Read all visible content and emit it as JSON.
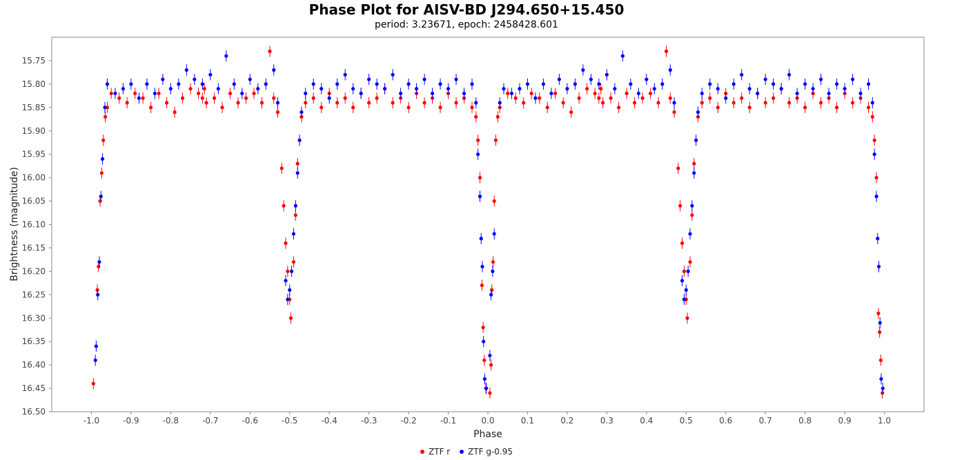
{
  "chart_data": {
    "type": "scatter",
    "title": "Phase Plot for AISV-BD J294.650+15.450",
    "subtitle": "period: 3.23671, epoch: 2458428.601",
    "xlabel": "Phase",
    "ylabel": "Brightness (magnitude)",
    "xlim": [
      -1.1,
      1.1
    ],
    "ylim": [
      15.7,
      16.5
    ],
    "y_inverted": true,
    "x_ticks": [
      "-1.0",
      "-0.9",
      "-0.8",
      "-0.7",
      "-0.6",
      "-0.5",
      "-0.4",
      "-0.3",
      "-0.2",
      "-0.1",
      "0.0",
      "0.1",
      "0.2",
      "0.3",
      "0.4",
      "0.5",
      "0.6",
      "0.7",
      "0.8",
      "0.9",
      "1.0"
    ],
    "y_ticks": [
      "15.75",
      "15.80",
      "15.85",
      "15.90",
      "15.95",
      "16.00",
      "16.05",
      "16.10",
      "16.15",
      "16.20",
      "16.25",
      "16.30",
      "16.35",
      "16.40",
      "16.45",
      "16.50"
    ],
    "grid": false,
    "legend_position": "bottom-center",
    "error_bars": true,
    "series": [
      {
        "name": "ZTF r",
        "color": "#ff0000",
        "description": "eclipsing binary light curve; baseline ~15.83 mag with scatter ±0.03; primary eclipse at phase 0.0 (depth to ~16.46), secondary eclipse at phase 0.5 (depth to ~16.30); shown repeated over phase -1.0 to 1.0",
        "points": [
          [
            -0.995,
            16.44
          ],
          [
            -0.985,
            16.24
          ],
          [
            -0.982,
            16.19
          ],
          [
            -0.978,
            16.05
          ],
          [
            -0.974,
            15.99
          ],
          [
            -0.97,
            15.92
          ],
          [
            -0.965,
            15.87
          ],
          [
            -0.96,
            15.85
          ],
          [
            -0.95,
            15.82
          ],
          [
            -0.93,
            15.83
          ],
          [
            -0.91,
            15.84
          ],
          [
            -0.89,
            15.82
          ],
          [
            -0.87,
            15.83
          ],
          [
            -0.85,
            15.85
          ],
          [
            -0.83,
            15.82
          ],
          [
            -0.81,
            15.84
          ],
          [
            -0.79,
            15.86
          ],
          [
            -0.77,
            15.83
          ],
          [
            -0.75,
            15.81
          ],
          [
            -0.73,
            15.82
          ],
          [
            -0.72,
            15.83
          ],
          [
            -0.715,
            15.81
          ],
          [
            -0.71,
            15.84
          ],
          [
            -0.69,
            15.83
          ],
          [
            -0.67,
            15.85
          ],
          [
            -0.65,
            15.82
          ],
          [
            -0.63,
            15.84
          ],
          [
            -0.61,
            15.83
          ],
          [
            -0.59,
            15.82
          ],
          [
            -0.57,
            15.84
          ],
          [
            -0.55,
            15.73
          ],
          [
            -0.54,
            15.83
          ],
          [
            -0.53,
            15.86
          ],
          [
            -0.52,
            15.98
          ],
          [
            -0.515,
            16.06
          ],
          [
            -0.51,
            16.14
          ],
          [
            -0.505,
            16.2
          ],
          [
            -0.5,
            16.26
          ],
          [
            -0.497,
            16.3
          ],
          [
            -0.49,
            16.18
          ],
          [
            -0.485,
            16.08
          ],
          [
            -0.48,
            15.97
          ],
          [
            -0.47,
            15.87
          ],
          [
            -0.46,
            15.84
          ],
          [
            -0.44,
            15.83
          ],
          [
            -0.42,
            15.85
          ],
          [
            -0.4,
            15.82
          ],
          [
            -0.38,
            15.84
          ],
          [
            -0.36,
            15.83
          ],
          [
            -0.34,
            15.85
          ],
          [
            -0.32,
            15.82
          ],
          [
            -0.3,
            15.84
          ],
          [
            -0.28,
            15.83
          ],
          [
            -0.26,
            15.81
          ],
          [
            -0.24,
            15.84
          ],
          [
            -0.22,
            15.83
          ],
          [
            -0.2,
            15.85
          ],
          [
            -0.18,
            15.82
          ],
          [
            -0.16,
            15.84
          ],
          [
            -0.14,
            15.83
          ],
          [
            -0.12,
            15.85
          ],
          [
            -0.1,
            15.82
          ],
          [
            -0.08,
            15.84
          ],
          [
            -0.06,
            15.83
          ],
          [
            -0.04,
            15.85
          ],
          [
            -0.03,
            15.87
          ],
          [
            -0.025,
            15.92
          ],
          [
            -0.02,
            16.0
          ],
          [
            -0.015,
            16.23
          ],
          [
            -0.012,
            16.32
          ],
          [
            -0.009,
            16.39
          ],
          [
            -0.005,
            16.45
          ],
          [
            0.005,
            16.46
          ],
          [
            0.008,
            16.4
          ],
          [
            0.01,
            16.24
          ],
          [
            0.013,
            16.18
          ],
          [
            0.016,
            16.05
          ],
          [
            0.02,
            15.92
          ],
          [
            0.025,
            15.87
          ],
          [
            0.03,
            15.85
          ],
          [
            0.05,
            15.82
          ],
          [
            0.07,
            15.83
          ],
          [
            0.09,
            15.84
          ],
          [
            0.11,
            15.82
          ],
          [
            0.13,
            15.83
          ],
          [
            0.15,
            15.85
          ],
          [
            0.17,
            15.82
          ],
          [
            0.19,
            15.84
          ],
          [
            0.21,
            15.86
          ],
          [
            0.23,
            15.83
          ],
          [
            0.25,
            15.81
          ],
          [
            0.27,
            15.82
          ],
          [
            0.28,
            15.83
          ],
          [
            0.285,
            15.81
          ],
          [
            0.29,
            15.84
          ],
          [
            0.31,
            15.83
          ],
          [
            0.33,
            15.85
          ],
          [
            0.35,
            15.82
          ],
          [
            0.37,
            15.84
          ],
          [
            0.39,
            15.83
          ],
          [
            0.41,
            15.82
          ],
          [
            0.43,
            15.84
          ],
          [
            0.45,
            15.73
          ],
          [
            0.46,
            15.83
          ],
          [
            0.47,
            15.86
          ],
          [
            0.48,
            15.98
          ],
          [
            0.485,
            16.06
          ],
          [
            0.49,
            16.14
          ],
          [
            0.495,
            16.2
          ],
          [
            0.5,
            16.26
          ],
          [
            0.503,
            16.3
          ],
          [
            0.51,
            16.18
          ],
          [
            0.515,
            16.08
          ],
          [
            0.52,
            15.97
          ],
          [
            0.53,
            15.87
          ],
          [
            0.54,
            15.84
          ],
          [
            0.56,
            15.83
          ],
          [
            0.58,
            15.85
          ],
          [
            0.6,
            15.82
          ],
          [
            0.62,
            15.84
          ],
          [
            0.64,
            15.83
          ],
          [
            0.66,
            15.85
          ],
          [
            0.68,
            15.82
          ],
          [
            0.7,
            15.84
          ],
          [
            0.72,
            15.83
          ],
          [
            0.74,
            15.81
          ],
          [
            0.76,
            15.84
          ],
          [
            0.78,
            15.83
          ],
          [
            0.8,
            15.85
          ],
          [
            0.82,
            15.82
          ],
          [
            0.84,
            15.84
          ],
          [
            0.86,
            15.83
          ],
          [
            0.88,
            15.85
          ],
          [
            0.9,
            15.82
          ],
          [
            0.92,
            15.84
          ],
          [
            0.94,
            15.83
          ],
          [
            0.96,
            15.85
          ],
          [
            0.97,
            15.87
          ],
          [
            0.975,
            15.92
          ],
          [
            0.98,
            16.0
          ],
          [
            0.985,
            16.29
          ],
          [
            0.988,
            16.33
          ],
          [
            0.991,
            16.39
          ],
          [
            0.995,
            16.46
          ]
        ]
      },
      {
        "name": "ZTF g-0.95",
        "color": "#0000ff",
        "description": "same light curve in g band offset by 0.95 mag; baseline ~15.82 mag; primary eclipse at phase 0.0 (to ~16.45), secondary at 0.5 (to ~16.25)",
        "points": [
          [
            -0.99,
            16.39
          ],
          [
            -0.988,
            16.36
          ],
          [
            -0.984,
            16.25
          ],
          [
            -0.98,
            16.18
          ],
          [
            -0.976,
            16.04
          ],
          [
            -0.972,
            15.96
          ],
          [
            -0.966,
            15.85
          ],
          [
            -0.96,
            15.8
          ],
          [
            -0.94,
            15.82
          ],
          [
            -0.92,
            15.81
          ],
          [
            -0.9,
            15.8
          ],
          [
            -0.88,
            15.83
          ],
          [
            -0.86,
            15.8
          ],
          [
            -0.84,
            15.82
          ],
          [
            -0.82,
            15.79
          ],
          [
            -0.8,
            15.81
          ],
          [
            -0.78,
            15.8
          ],
          [
            -0.76,
            15.77
          ],
          [
            -0.74,
            15.79
          ],
          [
            -0.72,
            15.8
          ],
          [
            -0.7,
            15.78
          ],
          [
            -0.68,
            15.81
          ],
          [
            -0.66,
            15.74
          ],
          [
            -0.64,
            15.8
          ],
          [
            -0.62,
            15.82
          ],
          [
            -0.6,
            15.79
          ],
          [
            -0.58,
            15.81
          ],
          [
            -0.56,
            15.8
          ],
          [
            -0.54,
            15.77
          ],
          [
            -0.53,
            15.84
          ],
          [
            -0.51,
            16.22
          ],
          [
            -0.505,
            16.26
          ],
          [
            -0.5,
            16.24
          ],
          [
            -0.495,
            16.2
          ],
          [
            -0.49,
            16.12
          ],
          [
            -0.485,
            16.06
          ],
          [
            -0.48,
            15.99
          ],
          [
            -0.475,
            15.92
          ],
          [
            -0.47,
            15.86
          ],
          [
            -0.46,
            15.82
          ],
          [
            -0.44,
            15.8
          ],
          [
            -0.42,
            15.81
          ],
          [
            -0.4,
            15.83
          ],
          [
            -0.38,
            15.8
          ],
          [
            -0.36,
            15.78
          ],
          [
            -0.34,
            15.81
          ],
          [
            -0.32,
            15.82
          ],
          [
            -0.3,
            15.79
          ],
          [
            -0.28,
            15.8
          ],
          [
            -0.26,
            15.81
          ],
          [
            -0.24,
            15.78
          ],
          [
            -0.22,
            15.82
          ],
          [
            -0.2,
            15.8
          ],
          [
            -0.18,
            15.81
          ],
          [
            -0.16,
            15.79
          ],
          [
            -0.14,
            15.82
          ],
          [
            -0.12,
            15.8
          ],
          [
            -0.1,
            15.81
          ],
          [
            -0.08,
            15.79
          ],
          [
            -0.06,
            15.82
          ],
          [
            -0.04,
            15.8
          ],
          [
            -0.03,
            15.84
          ],
          [
            -0.025,
            15.95
          ],
          [
            -0.02,
            16.04
          ],
          [
            -0.017,
            16.13
          ],
          [
            -0.014,
            16.19
          ],
          [
            -0.011,
            16.35
          ],
          [
            -0.008,
            16.43
          ],
          [
            -0.004,
            16.45
          ],
          [
            0.005,
            16.38
          ],
          [
            0.008,
            16.25
          ],
          [
            0.012,
            16.2
          ],
          [
            0.016,
            16.12
          ],
          [
            0.03,
            15.84
          ],
          [
            0.04,
            15.81
          ],
          [
            0.06,
            15.82
          ],
          [
            0.08,
            15.81
          ],
          [
            0.1,
            15.8
          ],
          [
            0.12,
            15.83
          ],
          [
            0.14,
            15.8
          ],
          [
            0.16,
            15.82
          ],
          [
            0.18,
            15.79
          ],
          [
            0.2,
            15.81
          ],
          [
            0.22,
            15.8
          ],
          [
            0.24,
            15.77
          ],
          [
            0.26,
            15.79
          ],
          [
            0.28,
            15.8
          ],
          [
            0.3,
            15.78
          ],
          [
            0.32,
            15.81
          ],
          [
            0.34,
            15.74
          ],
          [
            0.36,
            15.8
          ],
          [
            0.38,
            15.82
          ],
          [
            0.4,
            15.79
          ],
          [
            0.42,
            15.81
          ],
          [
            0.44,
            15.8
          ],
          [
            0.46,
            15.77
          ],
          [
            0.47,
            15.84
          ],
          [
            0.49,
            16.22
          ],
          [
            0.495,
            16.26
          ],
          [
            0.5,
            16.24
          ],
          [
            0.505,
            16.2
          ],
          [
            0.51,
            16.12
          ],
          [
            0.515,
            16.06
          ],
          [
            0.52,
            15.99
          ],
          [
            0.525,
            15.92
          ],
          [
            0.53,
            15.86
          ],
          [
            0.54,
            15.82
          ],
          [
            0.56,
            15.8
          ],
          [
            0.58,
            15.81
          ],
          [
            0.6,
            15.83
          ],
          [
            0.62,
            15.8
          ],
          [
            0.64,
            15.78
          ],
          [
            0.66,
            15.81
          ],
          [
            0.68,
            15.82
          ],
          [
            0.7,
            15.79
          ],
          [
            0.72,
            15.8
          ],
          [
            0.74,
            15.81
          ],
          [
            0.76,
            15.78
          ],
          [
            0.78,
            15.82
          ],
          [
            0.8,
            15.8
          ],
          [
            0.82,
            15.81
          ],
          [
            0.84,
            15.79
          ],
          [
            0.86,
            15.82
          ],
          [
            0.88,
            15.8
          ],
          [
            0.9,
            15.81
          ],
          [
            0.92,
            15.79
          ],
          [
            0.94,
            15.82
          ],
          [
            0.96,
            15.8
          ],
          [
            0.97,
            15.84
          ],
          [
            0.975,
            15.95
          ],
          [
            0.98,
            16.04
          ],
          [
            0.983,
            16.13
          ],
          [
            0.986,
            16.19
          ],
          [
            0.989,
            16.31
          ],
          [
            0.992,
            16.43
          ],
          [
            0.996,
            16.45
          ]
        ]
      }
    ]
  }
}
